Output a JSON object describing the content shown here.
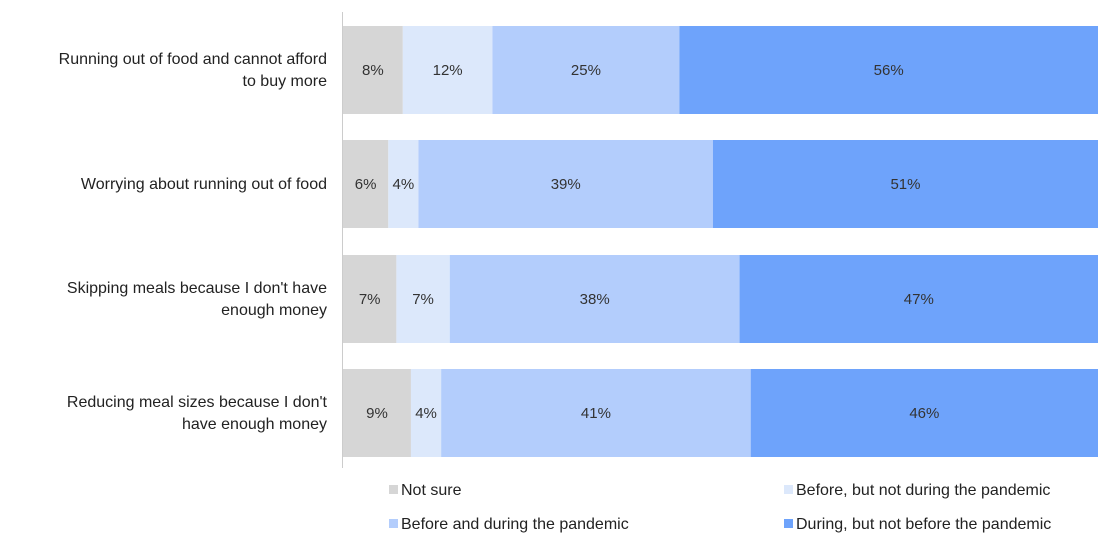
{
  "chart_data": {
    "type": "bar",
    "orientation": "horizontal",
    "stacked": true,
    "normalized_percent": true,
    "categories": [
      [
        "Running out of food and cannot afford",
        "to buy more"
      ],
      [
        "Worrying about running out of food"
      ],
      [
        "Skipping meals because I don't have",
        "enough money"
      ],
      [
        "Reducing meal sizes because I don't",
        "have enough money"
      ]
    ],
    "series": [
      {
        "name": "Not sure",
        "color": "#d6d6d6",
        "values": [
          8,
          6,
          7,
          9
        ],
        "labels": [
          "8%",
          "6%",
          "7%",
          "9%"
        ]
      },
      {
        "name": "Before, but not during the pandemic",
        "color": "#dce8fb",
        "values": [
          12,
          4,
          7,
          4
        ],
        "labels": [
          "12%",
          "4%",
          "7%",
          "4%"
        ]
      },
      {
        "name": "Before and during the pandemic",
        "color": "#b3cdfc",
        "values": [
          25,
          39,
          38,
          41
        ],
        "labels": [
          "25%",
          "39%",
          "38%",
          "41%"
        ]
      },
      {
        "name": "During, but not before the pandemic",
        "color": "#6ea3fb",
        "values": [
          56,
          51,
          47,
          46
        ],
        "labels": [
          "56%",
          "51%",
          "47%",
          "46%"
        ]
      }
    ],
    "legend_position": "bottom",
    "grid": false
  }
}
